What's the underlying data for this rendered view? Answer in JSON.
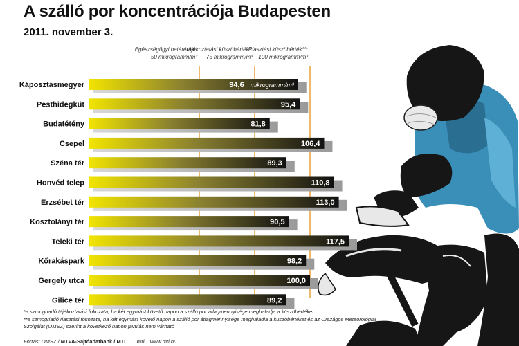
{
  "header": {
    "title": "A szálló por koncentrációja Budapesten",
    "subtitle": "2011. november 3."
  },
  "thresholds": [
    {
      "line1": "Egészségügyi határérték:",
      "line2": "50 mikrogramm/m³",
      "value": 50,
      "color": "#e8a23a"
    },
    {
      "line1": "tájékoztatási küszöbérték*:",
      "line2": "75 mikrogramm/m³",
      "value": 75,
      "color": "#e8a23a"
    },
    {
      "line1": "Riasztási küszöbérték**:",
      "line2": "100 mikrogramm/m³",
      "value": 100,
      "color": "#e8a23a"
    }
  ],
  "chart_data": {
    "type": "bar",
    "orientation": "horizontal",
    "categories": [
      "Káposztásmegyer",
      "Pesthidegkút",
      "Budatétény",
      "Csepel",
      "Széna tér",
      "Honvéd telep",
      "Erzsébet tér",
      "Kosztolányi tér",
      "Teleki tér",
      "Kőrakáspark",
      "Gergely utca",
      "Gilice tér"
    ],
    "values": [
      94.6,
      95.4,
      81.8,
      106.4,
      89.3,
      110.8,
      113.0,
      90.5,
      117.5,
      98.2,
      100.0,
      89.2
    ],
    "value_labels": [
      "94,6",
      "95,4",
      "81,8",
      "106,4",
      "89,3",
      "110,8",
      "113,0",
      "90,5",
      "117,5",
      "98,2",
      "100,0",
      "89,2"
    ],
    "unit_label": "mikrogramm/m³",
    "bar_gradient": [
      "#f2e500",
      "#8a8030",
      "#111111"
    ]
  },
  "notes": {
    "note1": "*a szmogriadó tájékoztatási fokozata, ha két egymást követő napon a szálló por átlagmennyisége meghaladja a küszöbértéket",
    "note2": "**a szmogriadó riasztási fokozata, ha két egymást követő napon a szálló por átlagmennyisége meghaladja a küszöbértéket  és az Országos Meteorológiai Szolgálat (OMSZ) szerint a következő napon javulás nem várható"
  },
  "source": {
    "prefix": "Forrás: OMSZ / ",
    "bold": "MTVA-Sajtóadatbank / MTI",
    "logo": "mti",
    "url": "www.mti.hu"
  },
  "illustration": {
    "icon": "cyclist-with-face-mask-illustration",
    "jacket_color": "#3a8fb8",
    "dark_color": "#161616"
  }
}
